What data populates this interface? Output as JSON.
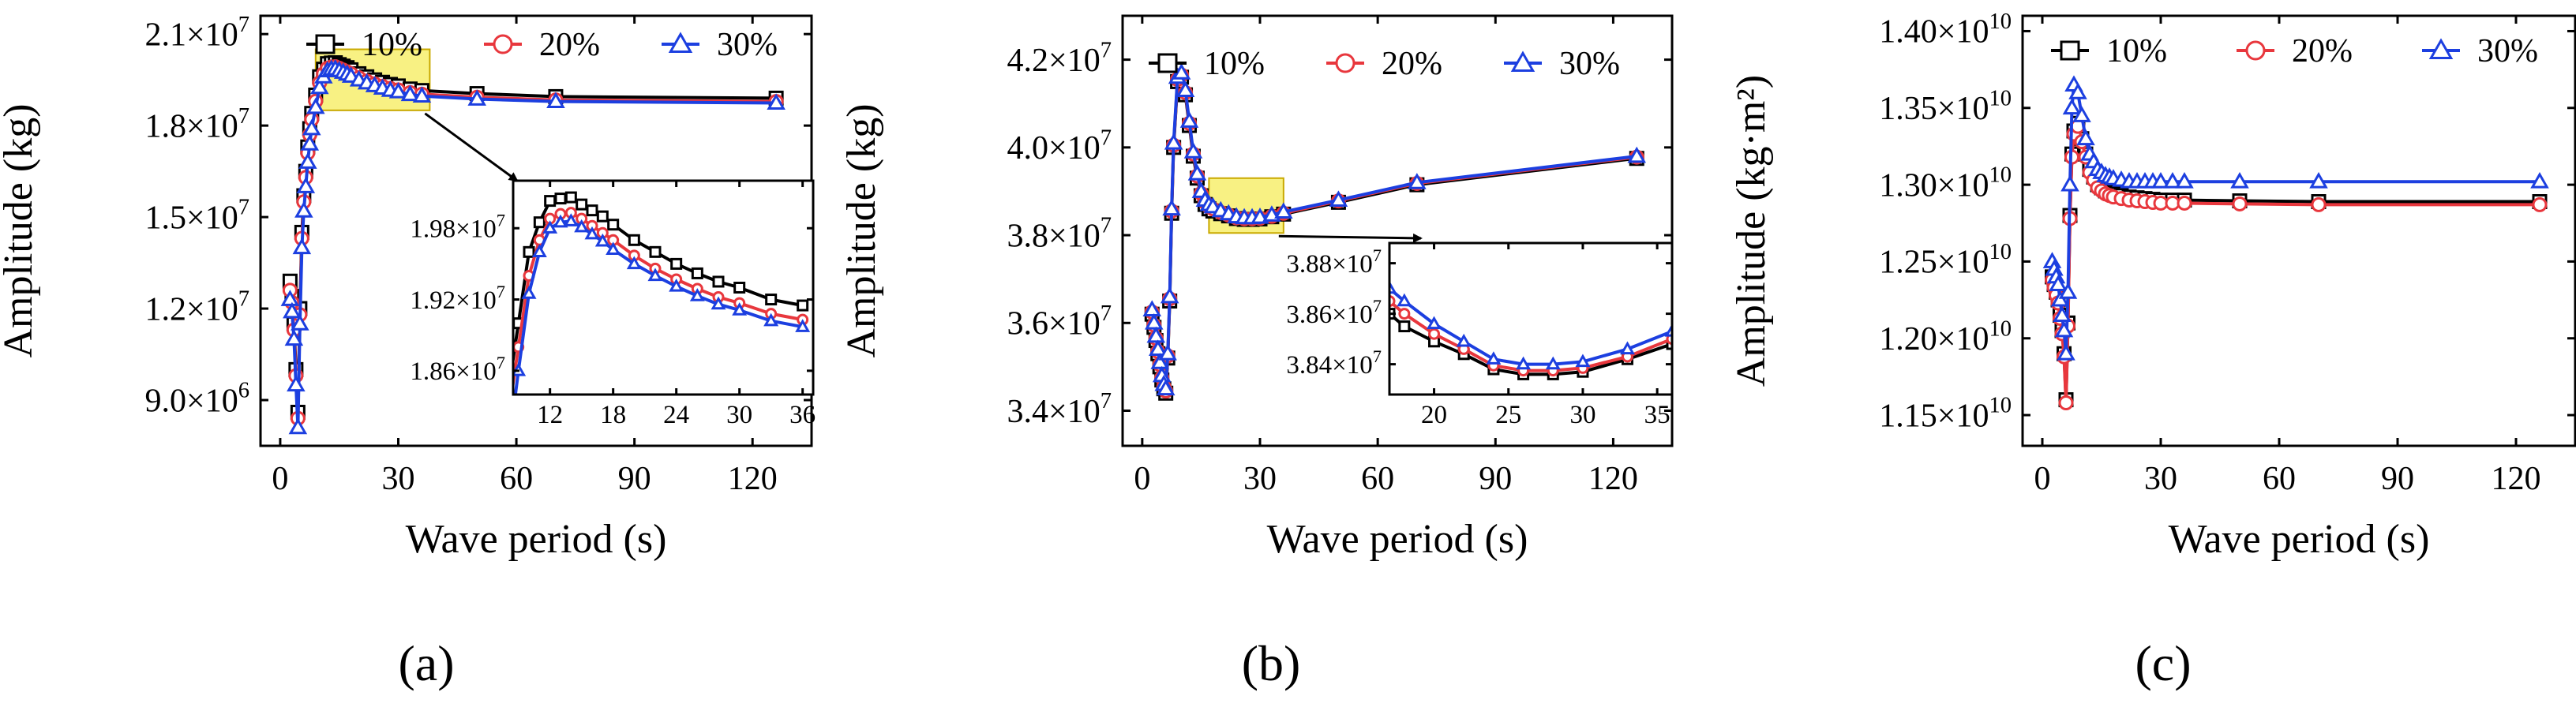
{
  "colors": {
    "s10": "#000000",
    "s20": "#e8373d",
    "s30": "#1c3fe0",
    "highlight": "#f7ee6d",
    "highlight_stroke": "#c9a900"
  },
  "chart_data": [
    {
      "panel": "(a)",
      "type": "line",
      "xlabel": "Wave period (s)",
      "ylabel": "Amplitude (kg)",
      "xlim": [
        -5,
        135
      ],
      "ylim": [
        7500000,
        21600000
      ],
      "xticks": [
        0,
        30,
        60,
        90,
        120
      ],
      "xtick_labels": [
        "0",
        "30",
        "60",
        "90",
        "120"
      ],
      "yticks": [
        9000000,
        12000000,
        15000000,
        18000000,
        21000000
      ],
      "ytick_labels": [
        {
          "base": "9.0×10",
          "exp": "6"
        },
        {
          "base": "1.2×10",
          "exp": "7"
        },
        {
          "base": "1.5×10",
          "exp": "7"
        },
        {
          "base": "1.8×10",
          "exp": "7"
        },
        {
          "base": "2.1×10",
          "exp": "7"
        }
      ],
      "legend": [
        "10%",
        "20%",
        "30%"
      ],
      "x": [
        2.5,
        3,
        3.5,
        4,
        4.5,
        5,
        5.5,
        6,
        6.5,
        7,
        7.5,
        8,
        9,
        10,
        11,
        12,
        13,
        14,
        15,
        16,
        17,
        18,
        20,
        22,
        24,
        26,
        28,
        30,
        33,
        36,
        50,
        70,
        126
      ],
      "series": [
        {
          "name": "10%",
          "values": [
            12900000,
            12400000,
            11500000,
            10000000,
            8600000,
            12000000,
            14500000,
            15700000,
            16500000,
            17300000,
            17900000,
            18400000,
            19000000,
            19600000,
            19850000,
            20030000,
            20050000,
            20060000,
            20000000,
            19950000,
            19900000,
            19830000,
            19700000,
            19600000,
            19500000,
            19420000,
            19350000,
            19300000,
            19200000,
            19150000,
            19050000,
            18950000,
            18900000
          ]
        },
        {
          "name": "20%",
          "values": [
            12600000,
            12200000,
            11300000,
            9800000,
            8400000,
            11800000,
            14300000,
            15500000,
            16300000,
            17100000,
            17700000,
            18200000,
            18800000,
            19400000,
            19700000,
            19880000,
            19920000,
            19930000,
            19880000,
            19820000,
            19760000,
            19700000,
            19570000,
            19460000,
            19370000,
            19290000,
            19220000,
            19170000,
            19080000,
            19030000,
            18930000,
            18840000,
            18790000
          ]
        },
        {
          "name": "30%",
          "values": [
            12300000,
            11900000,
            11000000,
            9500000,
            8100000,
            11500000,
            14000000,
            15200000,
            16000000,
            16800000,
            17400000,
            17900000,
            18600000,
            19250000,
            19600000,
            19800000,
            19850000,
            19860000,
            19810000,
            19750000,
            19690000,
            19620000,
            19500000,
            19400000,
            19310000,
            19230000,
            19160000,
            19110000,
            19020000,
            18970000,
            18870000,
            18790000,
            18740000
          ]
        }
      ],
      "highlight_box": {
        "xrange": [
          9,
          38
        ],
        "yrange": [
          18500000,
          20500000
        ]
      },
      "inset": {
        "xlim": [
          8.5,
          37
        ],
        "ylim": [
          18400000,
          20200000
        ],
        "xticks": [
          12,
          18,
          24,
          30,
          36
        ],
        "xtick_labels": [
          "12",
          "18",
          "24",
          "30",
          "36"
        ],
        "yticks": [
          18600000,
          19200000,
          19800000
        ],
        "ytick_labels": [
          {
            "base": "1.86×10",
            "exp": "7"
          },
          {
            "base": "1.92×10",
            "exp": "7"
          },
          {
            "base": "1.98×10",
            "exp": "7"
          }
        ]
      }
    },
    {
      "panel": "(b)",
      "type": "line",
      "xlabel": "Wave period (s)",
      "ylabel": "Amplitude (kg)",
      "xlim": [
        -5,
        135
      ],
      "ylim": [
        33200000,
        43000000
      ],
      "xticks": [
        0,
        30,
        60,
        90,
        120
      ],
      "xtick_labels": [
        "0",
        "30",
        "60",
        "90",
        "120"
      ],
      "yticks": [
        34000000,
        36000000,
        38000000,
        40000000,
        42000000
      ],
      "ytick_labels": [
        {
          "base": "3.4×10",
          "exp": "7"
        },
        {
          "base": "3.6×10",
          "exp": "7"
        },
        {
          "base": "3.8×10",
          "exp": "7"
        },
        {
          "base": "4.0×10",
          "exp": "7"
        },
        {
          "base": "4.2×10",
          "exp": "7"
        }
      ],
      "legend": [
        "10%",
        "20%",
        "30%"
      ],
      "x": [
        2.5,
        3,
        3.5,
        4,
        4.5,
        5,
        5.5,
        6,
        6.5,
        7,
        7.5,
        8,
        9,
        10,
        11,
        12,
        13,
        14,
        15,
        16,
        17,
        18,
        20,
        22,
        24,
        26,
        28,
        30,
        33,
        36,
        50,
        70,
        126
      ],
      "series": [
        {
          "name": "10%",
          "values": [
            36200000,
            35900000,
            35600000,
            35300000,
            35000000,
            34700000,
            34500000,
            34400000,
            35200000,
            36500000,
            38500000,
            40000000,
            41500000,
            41600000,
            41200000,
            40500000,
            39800000,
            39300000,
            38900000,
            38700000,
            38600000,
            38550000,
            38490000,
            38440000,
            38380000,
            38360000,
            38360000,
            38370000,
            38420000,
            38480000,
            38750000,
            39150000,
            39750000
          ]
        },
        {
          "name": "20%",
          "values": [
            36250000,
            35950000,
            35650000,
            35350000,
            35050000,
            34750000,
            34550000,
            34450000,
            35250000,
            36550000,
            38550000,
            40050000,
            41550000,
            41650000,
            41250000,
            40550000,
            39850000,
            39350000,
            38950000,
            38750000,
            38650000,
            38600000,
            38520000,
            38460000,
            38395000,
            38375000,
            38375000,
            38385000,
            38430000,
            38500000,
            38780000,
            39180000,
            39780000
          ]
        },
        {
          "name": "30%",
          "values": [
            36300000,
            36000000,
            35700000,
            35400000,
            35100000,
            34800000,
            34600000,
            34500000,
            35300000,
            36600000,
            38600000,
            40100000,
            41600000,
            41700000,
            41300000,
            40600000,
            39900000,
            39400000,
            39000000,
            38800000,
            38700000,
            38650000,
            38560000,
            38490000,
            38420000,
            38400000,
            38400000,
            38410000,
            38460000,
            38530000,
            38800000,
            39200000,
            39800000
          ]
        }
      ],
      "highlight_box": {
        "xrange": [
          17,
          36
        ],
        "yrange": [
          38050000,
          39300000
        ]
      },
      "inset": {
        "xlim": [
          17,
          36
        ],
        "ylim": [
          38280000,
          38880000
        ],
        "xticks": [
          20,
          25,
          30,
          35
        ],
        "xtick_labels": [
          "20",
          "25",
          "30",
          "35"
        ],
        "yticks": [
          38400000,
          38600000,
          38800000
        ],
        "ytick_labels": [
          {
            "base": "3.84×10",
            "exp": "7"
          },
          {
            "base": "3.86×10",
            "exp": "7"
          },
          {
            "base": "3.88×10",
            "exp": "7"
          }
        ]
      }
    },
    {
      "panel": "(c)",
      "type": "line",
      "xlabel": "Wave period (s)",
      "ylabel": "Amplitude (kg·m²)",
      "xlim": [
        -5,
        135
      ],
      "ylim": [
        11300000000,
        14100000000
      ],
      "xticks": [
        0,
        30,
        60,
        90,
        120
      ],
      "xtick_labels": [
        "0",
        "30",
        "60",
        "90",
        "120"
      ],
      "yticks": [
        11500000000,
        12000000000,
        12500000000,
        13000000000,
        13500000000,
        14000000000
      ],
      "ytick_labels": [
        {
          "base": "1.15×10",
          "exp": "10"
        },
        {
          "base": "1.20×10",
          "exp": "10"
        },
        {
          "base": "1.25×10",
          "exp": "10"
        },
        {
          "base": "1.30×10",
          "exp": "10"
        },
        {
          "base": "1.35×10",
          "exp": "10"
        },
        {
          "base": "1.40×10",
          "exp": "10"
        }
      ],
      "legend": [
        "10%",
        "20%",
        "30%"
      ],
      "x": [
        2.5,
        3,
        3.5,
        4,
        4.5,
        5,
        5.5,
        6,
        6.5,
        7,
        7.5,
        8,
        9,
        10,
        11,
        12,
        13,
        14,
        15,
        16,
        17,
        18,
        20,
        22,
        24,
        26,
        28,
        30,
        33,
        36,
        50,
        70,
        126
      ],
      "series": [
        {
          "name": "10%",
          "values": [
            12400000000,
            12350000000,
            12300000000,
            12250000000,
            12150000000,
            12050000000,
            11900000000,
            11600000000,
            12100000000,
            12800000000,
            13200000000,
            13350000000,
            13400000000,
            13300000000,
            13200000000,
            13100000000,
            13050000000,
            13000000000,
            12980000000,
            12960000000,
            12950000000,
            12940000000,
            12930000000,
            12920000000,
            12915000000,
            12910000000,
            12905000000,
            12900000000,
            12900000000,
            12900000000,
            12895000000,
            12890000000,
            12890000000
          ]
        },
        {
          "name": "20%",
          "values": [
            12380000000,
            12330000000,
            12280000000,
            12230000000,
            12130000000,
            12030000000,
            11880000000,
            11580000000,
            12080000000,
            12780000000,
            13180000000,
            13330000000,
            13380000000,
            13280000000,
            13180000000,
            13080000000,
            13030000000,
            12980000000,
            12960000000,
            12940000000,
            12930000000,
            12920000000,
            12910000000,
            12900000000,
            12895000000,
            12890000000,
            12885000000,
            12880000000,
            12880000000,
            12880000000,
            12875000000,
            12870000000,
            12870000000
          ]
        },
        {
          "name": "30%",
          "values": [
            12500000000,
            12450000000,
            12400000000,
            12350000000,
            12250000000,
            12150000000,
            12050000000,
            11900000000,
            12300000000,
            13000000000,
            13500000000,
            13650000000,
            13600000000,
            13450000000,
            13300000000,
            13200000000,
            13150000000,
            13100000000,
            13080000000,
            13060000000,
            13050000000,
            13040000000,
            13030000000,
            13020000000,
            13020000000,
            13020000000,
            13020000000,
            13020000000,
            13020000000,
            13020000000,
            13020000000,
            13020000000,
            13020000000
          ]
        }
      ]
    }
  ]
}
